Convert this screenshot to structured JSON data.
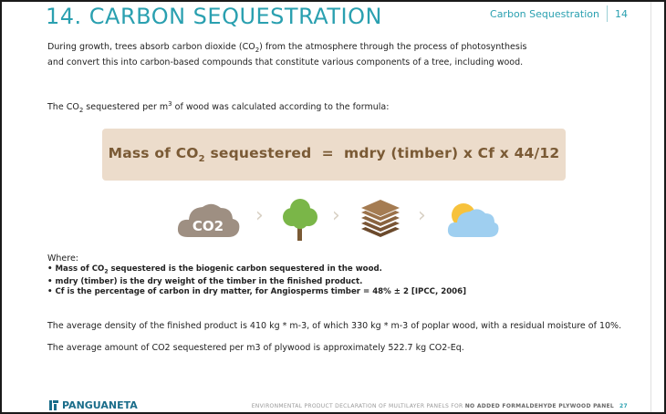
{
  "header": {
    "title": "14. CARBON SEQUESTRATION",
    "section": "Carbon Sequestration",
    "page_number": "14"
  },
  "intro": {
    "line1_a": "During growth, trees absorb carbon dioxide (CO",
    "line1_sub": "2",
    "line1_b": ") from the atmosphere through the process of photosynthesis",
    "line2": "and convert this into carbon-based compounds that constitute various components of a tree, including wood."
  },
  "formula_intro": {
    "a": "The CO",
    "sub": "2",
    "b": " sequestered per m",
    "sup": "3",
    "c": " of wood was calculated according to the formula:"
  },
  "formula": {
    "a": "Mass of CO",
    "sub": "2",
    "b": " sequestered  =  mdry (timber) x Cf x 44/12"
  },
  "icons": {
    "cloud_label": "CO2",
    "names": [
      "co2-cloud-icon",
      "tree-icon",
      "wood-panels-icon",
      "sun-cloud-icon"
    ],
    "colors": {
      "cloud": "#9e8f82",
      "tree": "#7ab648",
      "trunk": "#7a5a35",
      "panels": "#6b4a2c",
      "sun": "#f7c23c",
      "sky_cloud": "#9fcff0"
    }
  },
  "where": {
    "label": "Where:",
    "b1_a": "• Mass of CO",
    "b1_sub": "2",
    "b1_b": " sequestered  is the biogenic carbon sequestered in the wood.",
    "b2": "• mdry (timber) is the dry weight of the timber in the finished product.",
    "b3": "• Cf is the percentage of carbon in dry matter, for Angiosperms timber = 48% ± 2 [IPCC, 2006]"
  },
  "density_text": "The average density of the finished product is 410 kg * m-3, of which 330 kg * m-3 of poplar wood, with a residual moisture of 10%.",
  "average_text": "The average amount of CO2 sequestered per m3 of plywood is approximately 522.7 kg CO2-Eq.",
  "footer": {
    "brand": "PANGUANETA",
    "text": "ENVIRONMENTAL PRODUCT DECLARATION OF MULTILAYER PANELS FOR ",
    "text_bold": "NO ADDED FORMALDEHYDE PLYWOOD PANEL",
    "page": "27",
    "brand_color": "#1a6d8a",
    "accent_color": "#2aa0b0"
  }
}
